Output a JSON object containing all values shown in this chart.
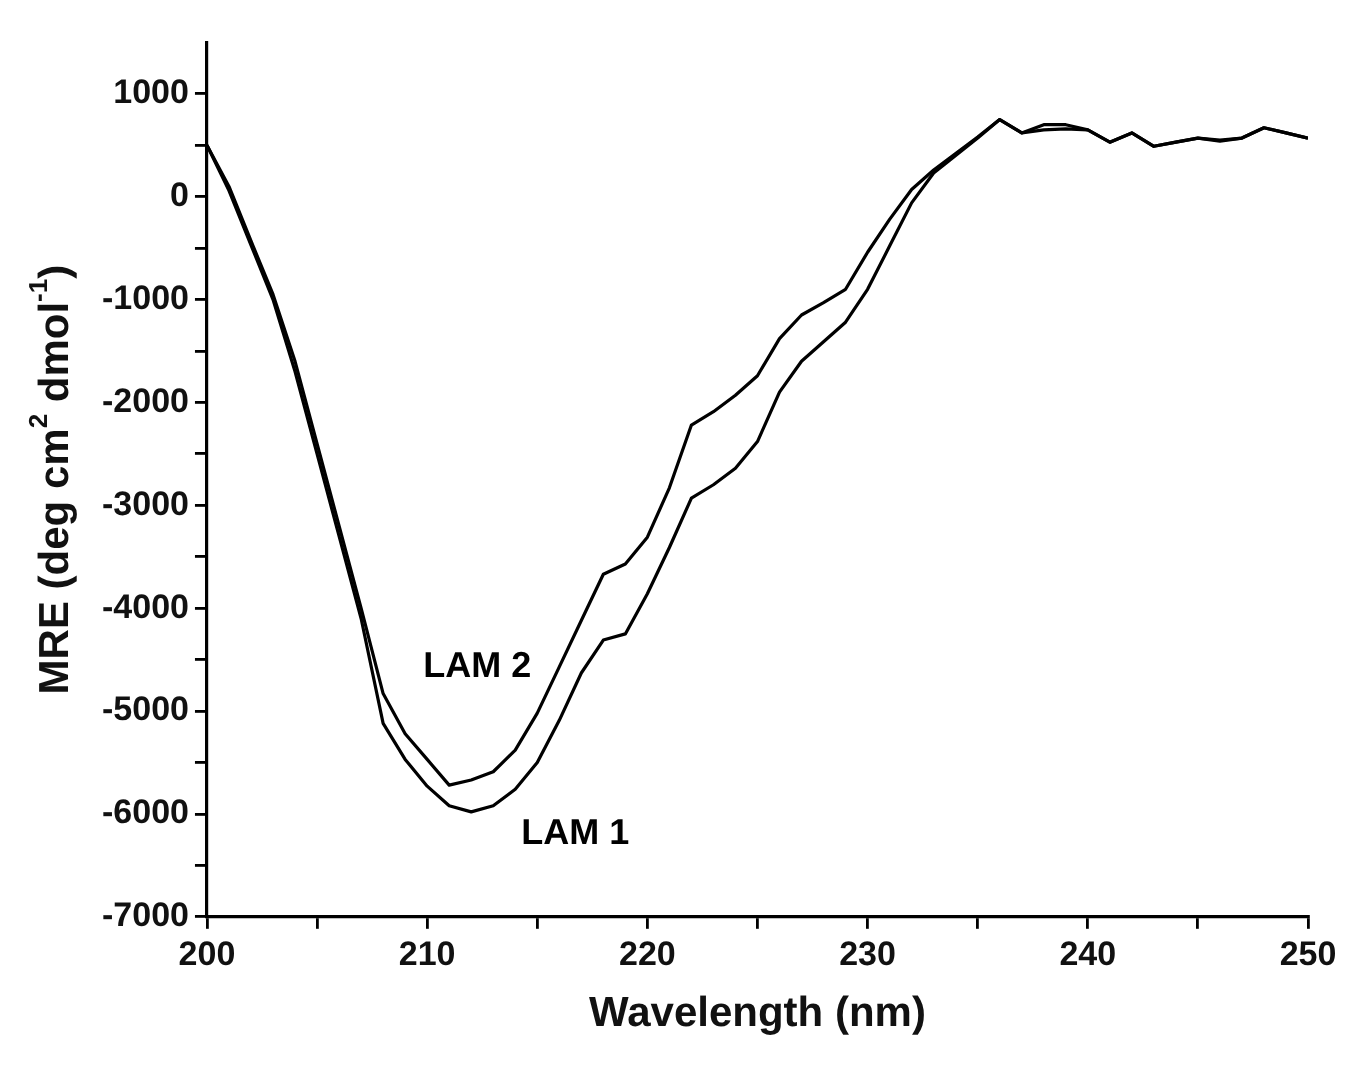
{
  "chart_data": {
    "type": "line",
    "xlabel": "Wavelength (nm)",
    "ylabel": "MRE (deg cm$^{2}$ dmol$^{-1}$)",
    "x": [
      200,
      201,
      202,
      203,
      204,
      205,
      206,
      207,
      208,
      209,
      210,
      211,
      212,
      213,
      214,
      215,
      216,
      217,
      218,
      219,
      220,
      221,
      222,
      223,
      224,
      225,
      226,
      227,
      228,
      229,
      230,
      231,
      232,
      233,
      234,
      235,
      236,
      237,
      238,
      239,
      240,
      241,
      242,
      243,
      244,
      245,
      246,
      247,
      248,
      249,
      250
    ],
    "series": [
      {
        "name": "LAM 1",
        "color": "#000000",
        "values": [
          500,
          60,
          -470,
          -1000,
          -1700,
          -2500,
          -3300,
          -4100,
          -5120,
          -5470,
          -5730,
          -5920,
          -5980,
          -5920,
          -5760,
          -5500,
          -5090,
          -4630,
          -4310,
          -4250,
          -3860,
          -3410,
          -2930,
          -2800,
          -2640,
          -2380,
          -1900,
          -1600,
          -1410,
          -1220,
          -900,
          -480,
          -60,
          230,
          400,
          570,
          750,
          620,
          650,
          660,
          650,
          530,
          620,
          490,
          530,
          570,
          540,
          570,
          670,
          620,
          570
        ]
      },
      {
        "name": "LAM 2",
        "color": "#000000",
        "values": [
          500,
          100,
          -430,
          -950,
          -1600,
          -2400,
          -3200,
          -4000,
          -4830,
          -5220,
          -5470,
          -5720,
          -5670,
          -5590,
          -5380,
          -5020,
          -4570,
          -4120,
          -3670,
          -3570,
          -3310,
          -2830,
          -2220,
          -2090,
          -1930,
          -1740,
          -1380,
          -1150,
          -1030,
          -900,
          -540,
          -220,
          70,
          260,
          420,
          580,
          750,
          620,
          700,
          700,
          650,
          530,
          620,
          490,
          530,
          570,
          550,
          570,
          670,
          620,
          570
        ]
      }
    ],
    "xlim": [
      200,
      250
    ],
    "xticks": [
      200,
      {
        "value": 205,
        "label": null
      },
      210,
      {
        "value": 215,
        "label": null
      },
      220,
      {
        "value": 225,
        "label": null
      },
      230,
      {
        "value": 235,
        "label": null
      },
      240,
      {
        "value": 245,
        "label": null
      },
      250
    ],
    "ylim": [
      -7000,
      1500
    ],
    "yticks": [
      -7000,
      {
        "value": -6500,
        "label": null
      },
      -6000,
      {
        "value": -5500,
        "label": null
      },
      -5000,
      {
        "value": -4500,
        "label": null
      },
      -4000,
      {
        "value": -3500,
        "label": null
      },
      -3000,
      {
        "value": -2500,
        "label": null
      },
      -2000,
      {
        "value": -1500,
        "label": null
      },
      -1000,
      {
        "value": -500,
        "label": null
      },
      0,
      {
        "value": 500,
        "label": null
      },
      1000
    ],
    "grid": false,
    "legend": false,
    "marker": "none",
    "line_style": "solid"
  }
}
